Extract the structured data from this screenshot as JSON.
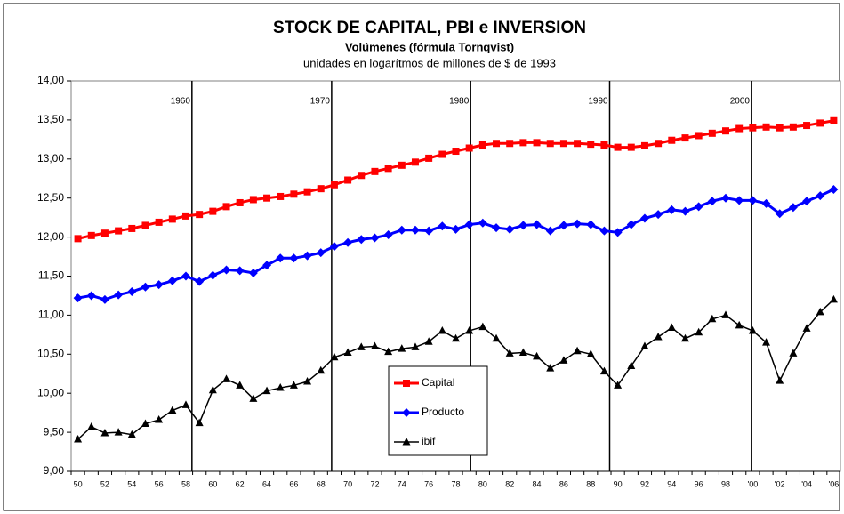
{
  "chart_data": {
    "type": "line",
    "title": "STOCK DE CAPITAL, PBI e INVERSION",
    "subtitle": "Volúmenes (fórmula Tornqvist)",
    "note": "unidades en logarítmos de millones de $ de 1993",
    "categories": [
      "50",
      null,
      "52",
      null,
      "54",
      null,
      "56",
      null,
      "58",
      null,
      "60",
      null,
      "62",
      null,
      "64",
      null,
      "66",
      null,
      "68",
      null,
      "70",
      null,
      "72",
      null,
      "74",
      null,
      "76",
      null,
      "78",
      null,
      "80",
      null,
      "82",
      null,
      "84",
      null,
      "86",
      null,
      "88",
      null,
      "90",
      null,
      "92",
      null,
      "94",
      null,
      "96",
      null,
      "98",
      null,
      "'00",
      null,
      "'02",
      null,
      "'04",
      null,
      "'06"
    ],
    "series": [
      {
        "name": "Capital",
        "color": "#ff0000",
        "marker": "square",
        "values": [
          11.98,
          12.02,
          12.05,
          12.08,
          12.11,
          12.15,
          12.19,
          12.23,
          12.27,
          12.29,
          12.33,
          12.39,
          12.44,
          12.48,
          12.5,
          12.52,
          12.55,
          12.58,
          12.62,
          12.67,
          12.73,
          12.79,
          12.84,
          12.88,
          12.92,
          12.96,
          13.01,
          13.06,
          13.1,
          13.14,
          13.18,
          13.2,
          13.2,
          13.21,
          13.21,
          13.2,
          13.2,
          13.2,
          13.19,
          13.18,
          13.15,
          13.15,
          13.17,
          13.2,
          13.24,
          13.27,
          13.3,
          13.33,
          13.36,
          13.39,
          13.4,
          13.41,
          13.4,
          13.41,
          13.43,
          13.46,
          13.49
        ]
      },
      {
        "name": "Producto",
        "color": "#0000ff",
        "marker": "diamond",
        "values": [
          11.22,
          11.25,
          11.2,
          11.26,
          11.3,
          11.36,
          11.39,
          11.44,
          11.5,
          11.43,
          11.51,
          11.58,
          11.57,
          11.54,
          11.64,
          11.73,
          11.73,
          11.76,
          11.8,
          11.88,
          11.93,
          11.97,
          11.99,
          12.03,
          12.09,
          12.09,
          12.08,
          12.14,
          12.1,
          12.16,
          12.18,
          12.12,
          12.1,
          12.15,
          12.16,
          12.08,
          12.15,
          12.17,
          12.16,
          12.08,
          12.06,
          12.16,
          12.24,
          12.29,
          12.35,
          12.33,
          12.39,
          12.46,
          12.5,
          12.47,
          12.47,
          12.43,
          12.3,
          12.38,
          12.46,
          12.53,
          12.61
        ]
      },
      {
        "name": "ibif",
        "color": "#000000",
        "marker": "triangle",
        "values": [
          9.41,
          9.57,
          9.49,
          9.5,
          9.47,
          9.61,
          9.66,
          9.78,
          9.85,
          9.62,
          10.04,
          10.18,
          10.1,
          9.93,
          10.03,
          10.07,
          10.1,
          10.15,
          10.29,
          10.46,
          10.52,
          10.59,
          10.6,
          10.53,
          10.57,
          10.59,
          10.66,
          10.8,
          10.7,
          10.8,
          10.85,
          10.7,
          10.51,
          10.52,
          10.47,
          10.32,
          10.42,
          10.54,
          10.5,
          10.28,
          10.1,
          10.35,
          10.6,
          10.72,
          10.84,
          10.7,
          10.78,
          10.95,
          11.0,
          10.87,
          10.8,
          10.65,
          10.16,
          10.51,
          10.83,
          11.04,
          11.2
        ]
      }
    ],
    "vertical_lines": [
      {
        "label": "1960",
        "position": 8.45
      },
      {
        "label": "1970",
        "position": 18.8
      },
      {
        "label": "1980",
        "position": 29.1
      },
      {
        "label": "1990",
        "position": 39.4
      },
      {
        "label": "2000",
        "position": 49.9
      }
    ],
    "ylim": [
      9,
      14
    ],
    "yticks": [
      {
        "value": 9,
        "label": "9,00"
      },
      {
        "value": 9.5,
        "label": "9,50"
      },
      {
        "value": 10,
        "label": "10,00"
      },
      {
        "value": 10.5,
        "label": "10,50"
      },
      {
        "value": 11,
        "label": "11,00"
      },
      {
        "value": 11.5,
        "label": "11,50"
      },
      {
        "value": 12,
        "label": "12,00"
      },
      {
        "value": 12.5,
        "label": "12,50"
      },
      {
        "value": 13,
        "label": "13,00"
      },
      {
        "value": 13.5,
        "label": "13,50"
      },
      {
        "value": 14,
        "label": "14,00"
      }
    ],
    "legend": "center"
  }
}
